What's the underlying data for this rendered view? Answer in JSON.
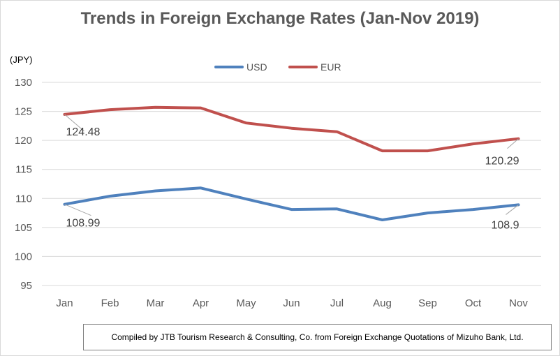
{
  "chart_data": {
    "type": "line",
    "title": "Trends in Foreign Exchange Rates (Jan-Nov 2019)",
    "ylabel": "(JPY)",
    "xlabel": "",
    "categories": [
      "Jan",
      "Feb",
      "Mar",
      "Apr",
      "May",
      "Jun",
      "Jul",
      "Aug",
      "Sep",
      "Oct",
      "Nov"
    ],
    "ylim": [
      95,
      130
    ],
    "yticks": [
      95,
      100,
      105,
      110,
      115,
      120,
      125,
      130
    ],
    "grid": "horizontal",
    "legend_position": "top-center",
    "series": [
      {
        "name": "USD",
        "color": "#4f81bd",
        "values": [
          108.99,
          110.4,
          111.3,
          111.8,
          109.9,
          108.1,
          108.2,
          106.3,
          107.5,
          108.1,
          108.9
        ]
      },
      {
        "name": "EUR",
        "color": "#c0504d",
        "values": [
          124.48,
          125.3,
          125.7,
          125.6,
          123.0,
          122.1,
          121.5,
          118.2,
          118.2,
          119.4,
          120.29
        ]
      }
    ],
    "data_labels": [
      {
        "series": "EUR",
        "category": "Jan",
        "text": "124.48"
      },
      {
        "series": "EUR",
        "category": "Nov",
        "text": "120.29"
      },
      {
        "series": "USD",
        "category": "Jan",
        "text": "108.99"
      },
      {
        "series": "USD",
        "category": "Nov",
        "text": "108.9"
      }
    ],
    "source": "Compiled by JTB Tourism Research & Consulting, Co. from Foreign Exchange Quotations of Mizuho Bank, Ltd."
  }
}
